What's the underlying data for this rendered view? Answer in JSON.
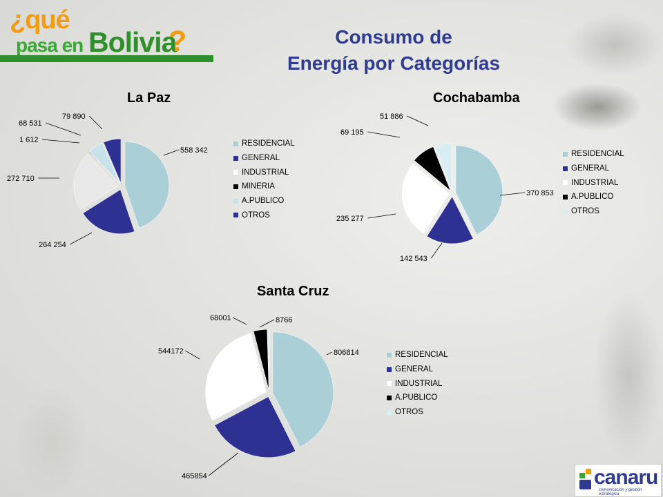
{
  "header": {
    "logo_que": "¿qué",
    "logo_pasa_en": "pasa en",
    "logo_bolivia": "Bolivia",
    "logo_mark": "?",
    "title_line1": "Consumo de",
    "title_line2": "Energía por Categorías"
  },
  "footer": {
    "logo_text": "canaru",
    "logo_tagline": "comunicación y gestión estratégica"
  },
  "colors": {
    "title": "#2f3a91",
    "RESIDENCIAL": "#aacfd6",
    "GENERAL": "#2e3192",
    "INDUSTRIAL": "#ffffff",
    "INDUSTRIAL_LaPaz": "#e8e8e8",
    "MINERIA": "#000000",
    "A.PUBLICO": "#000000",
    "A.PUBLICO_LaPaz": "#c7e2e8",
    "OTROS": "#d9eef2",
    "OTROS_LaPaz": "#2e3192"
  },
  "chart_data": [
    {
      "type": "pie",
      "title": "La Paz",
      "categories": [
        "RESIDENCIAL",
        "GENERAL",
        "INDUSTRIAL",
        "MINERIA",
        "A.PUBLICO",
        "OTROS"
      ],
      "values": [
        558342,
        264254,
        272710,
        1612,
        68531,
        79890
      ],
      "labels": [
        "558 342",
        "264 254",
        "272 710",
        "1 612",
        "68 531",
        "79 890"
      ],
      "legend": "right"
    },
    {
      "type": "pie",
      "title": "Cochabamba",
      "categories": [
        "RESIDENCIAL",
        "GENERAL",
        "INDUSTRIAL",
        "A.PUBLICO",
        "OTROS"
      ],
      "values": [
        370853,
        142543,
        235277,
        69195,
        51886
      ],
      "labels": [
        "370 853",
        "142 543",
        "235 277",
        "69 195",
        "51 886"
      ],
      "legend": "right"
    },
    {
      "type": "pie",
      "title": "Santa Cruz",
      "categories": [
        "RESIDENCIAL",
        "GENERAL",
        "INDUSTRIAL",
        "A.PUBLICO",
        "OTROS"
      ],
      "values": [
        806814,
        465854,
        544172,
        68001,
        8766
      ],
      "labels": [
        "806814",
        "465854",
        "544172",
        "68001",
        "8766"
      ],
      "legend": "right"
    }
  ]
}
